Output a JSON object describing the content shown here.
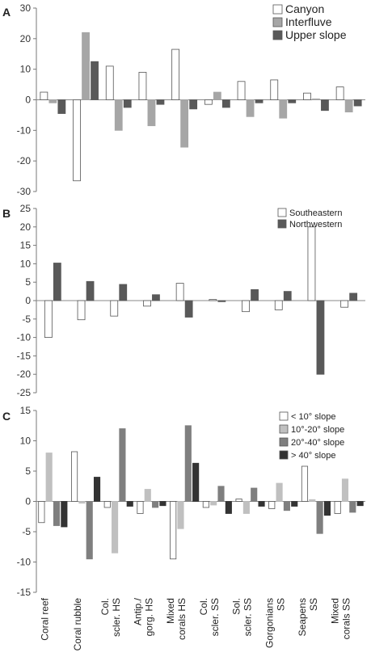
{
  "chart_data": [
    {
      "panel": "A",
      "type": "bar",
      "categories": [
        "Coral reef",
        "Coral rubble",
        "Col. scler. HS",
        "Antip./ gorg. HS",
        "Mixed corals HS",
        "Col. scler. SS",
        "Sol. scler. SS",
        "Gorgonians SS",
        "Seapens SS",
        "Mixed corals SS"
      ],
      "series": [
        {
          "name": "Canyon",
          "color": "#ffffff",
          "values": [
            2.5,
            -26.5,
            11,
            9,
            16.5,
            -1.5,
            6,
            6.5,
            2.2,
            4.2
          ]
        },
        {
          "name": "Interfluve",
          "color": "#a6a6a6",
          "values": [
            -1,
            22,
            -10,
            -8.5,
            -15.5,
            2.5,
            -5.5,
            -6,
            0.3,
            -4
          ]
        },
        {
          "name": "Upper slope",
          "color": "#595959",
          "values": [
            -4.5,
            12.5,
            -2.5,
            -1.5,
            -3,
            -2.5,
            -1,
            -1,
            -3.5,
            -2
          ]
        }
      ],
      "ylim": [
        -30,
        30
      ],
      "yticks": [
        30,
        20,
        10,
        0,
        -10,
        -20,
        -30
      ],
      "legend": "top-right",
      "grid": false
    },
    {
      "panel": "B",
      "type": "bar",
      "categories": [
        "Coral reef",
        "Coral rubble",
        "Col. scler. HS",
        "Antip./ gorg. HS",
        "Mixed corals HS",
        "Col. scler. SS",
        "Sol. scler. SS",
        "Gorgonians SS",
        "Seapens SS",
        "Mixed corals SS"
      ],
      "series": [
        {
          "name": "Southeastern",
          "color": "#ffffff",
          "values": [
            -10,
            -5.2,
            -4.2,
            -1.5,
            4.7,
            0.3,
            -3,
            -2.5,
            20,
            -1.8
          ]
        },
        {
          "name": "Northwestern",
          "color": "#595959",
          "values": [
            10.2,
            5.2,
            4.4,
            1.6,
            -4.5,
            -0.3,
            3,
            2.5,
            -20,
            2
          ]
        }
      ],
      "ylim": [
        -25,
        25
      ],
      "yticks": [
        25,
        20,
        15,
        10,
        5,
        0,
        -5,
        -10,
        -15,
        -20,
        -25
      ],
      "legend": "top-right",
      "grid": false
    },
    {
      "panel": "C",
      "type": "bar",
      "categories": [
        "Coral reef",
        "Coral rubble",
        "Col. scler. HS",
        "Antip./ gorg. HS",
        "Mixed corals HS",
        "Col. scler. SS",
        "Sol. scler. SS",
        "Gorgonians SS",
        "Seapens SS",
        "Mixed corals SS"
      ],
      "series": [
        {
          "name": "< 10° slope",
          "color": "#ffffff",
          "values": [
            -3.5,
            8.2,
            -1,
            -2,
            -9.5,
            -1,
            0.4,
            -1.2,
            5.8,
            -2
          ]
        },
        {
          "name": "10°-20° slope",
          "color": "#c0c0c0",
          "values": [
            8,
            -0.3,
            -8.5,
            2,
            -4.5,
            -0.6,
            -2,
            3,
            0.3,
            3.7
          ]
        },
        {
          "name": "20°-40° slope",
          "color": "#7f7f7f",
          "values": [
            -4,
            -9.5,
            12,
            -1,
            12.5,
            2.5,
            2.2,
            -1.5,
            -5.3,
            -1.8
          ]
        },
        {
          "name": "> 40° slope",
          "color": "#333333",
          "values": [
            -4.2,
            4,
            -0.8,
            -0.7,
            6.3,
            -2,
            -0.8,
            -0.8,
            -2.3,
            -0.7
          ]
        }
      ],
      "ylim": [
        -15,
        15
      ],
      "yticks": [
        15,
        10,
        5,
        0,
        -5,
        -10,
        -15
      ],
      "legend": "top-right",
      "grid": false
    }
  ],
  "x_tick_labels": [
    [
      "Coral reef"
    ],
    [
      "Coral rubble"
    ],
    [
      "Col.",
      "scler. HS"
    ],
    [
      "Antip./",
      "gorg. HS"
    ],
    [
      "Mixed",
      "corals HS"
    ],
    [
      "Col.",
      "scler. SS"
    ],
    [
      "Sol.",
      "scler. SS"
    ],
    [
      "Gorgonians",
      "SS"
    ],
    [
      "Seapens",
      "SS"
    ],
    [
      "Mixed",
      "corals SS"
    ]
  ]
}
